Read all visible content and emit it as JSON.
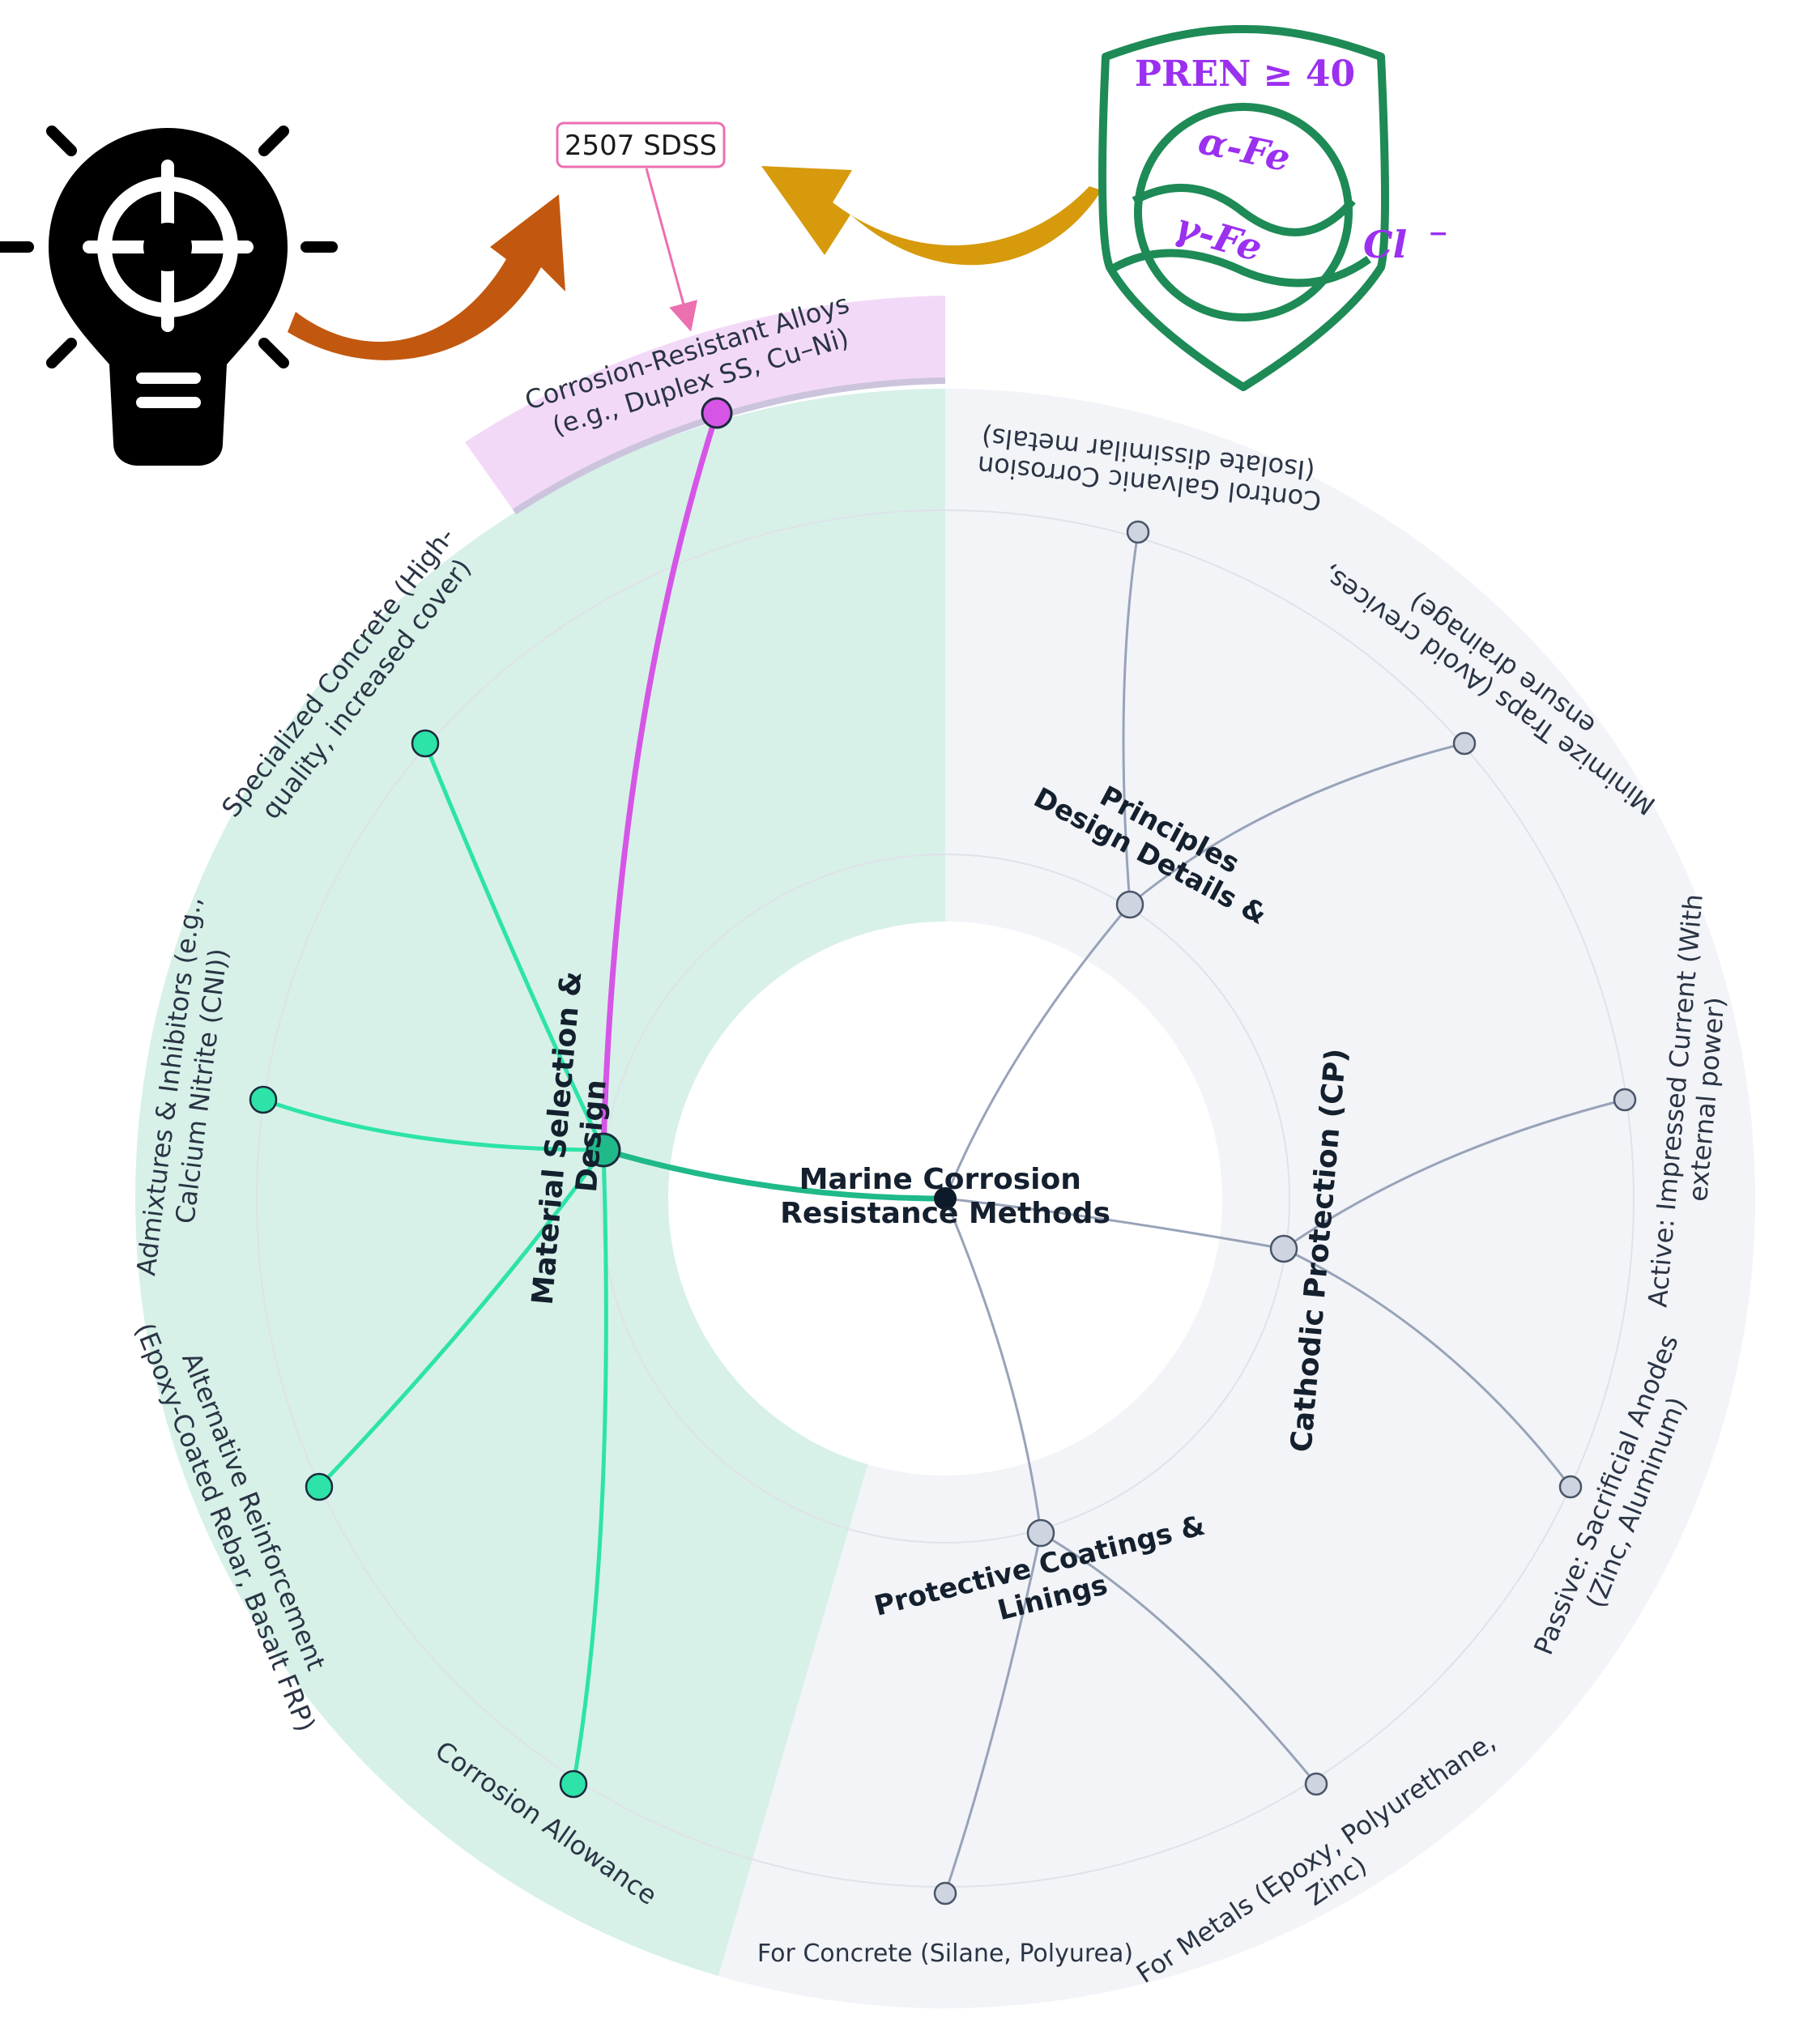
{
  "center": {
    "label_line1": "Marine Corrosion",
    "label_line2": "Resistance Methods"
  },
  "categories": [
    {
      "id": "material",
      "line1": "Material Selection &",
      "line2": "Design",
      "color": "#22c99a",
      "highlighted": true,
      "leaves": [
        {
          "line1": "Corrosion-Resistant Alloys",
          "line2": "(e.g., Duplex SS, Cu–Ni)",
          "highlight": true
        },
        {
          "line1": "Specialized Concrete (High-",
          "line2": "quality, increased cover)"
        },
        {
          "line1": "Admixtures & Inhibitors (e.g.,",
          "line2": "Calcium Nitrite (CNI))"
        },
        {
          "line1": "Alternative Reinforcement",
          "line2": "(Epoxy-Coated Rebar, Basalt FRP)"
        },
        {
          "line1": "Corrosion Allowance",
          "line2": ""
        }
      ]
    },
    {
      "id": "design",
      "line1": "Design Details &",
      "line2": "Principles",
      "color": "#8f9ab0",
      "leaves": [
        {
          "line1": "Control Galvanic Corrosion",
          "line2": "(Isolate dissimilar metals)"
        },
        {
          "line1": "Minimize Traps (Avoid crevices,",
          "line2": "ensure drainage)"
        }
      ]
    },
    {
      "id": "cp",
      "line1": "Cathodic Protection (CP)",
      "line2": "",
      "color": "#8f9ab0",
      "leaves": [
        {
          "line1": "Active: Impressed Current  (With",
          "line2": "external power)"
        },
        {
          "line1": "Passive: Sacrificial Anodes",
          "line2": "(Zinc, Aluminum)"
        }
      ]
    },
    {
      "id": "coatings",
      "line1": "Protective Coatings &",
      "line2": "Linings",
      "color": "#8f9ab0",
      "leaves": [
        {
          "line1": "For Metals (Epoxy, Polyurethane,",
          "line2": "Zinc)"
        },
        {
          "line1": "For Concrete (Silane, Polyurea)",
          "line2": ""
        }
      ]
    }
  ],
  "callout": {
    "label": "2507 SDSS",
    "color": "#ec6fb0"
  },
  "shield": {
    "title": "PREN ≥ 40",
    "phase1": "α-Fe",
    "phase2": "γ-Fe",
    "ion": "Cl",
    "ion_charge": "−",
    "color": "#1e8a56",
    "text_color": "#9b30f0"
  },
  "icons": {
    "bulb": "lightbulb-target-icon",
    "arrow_left": "curved-arrow-orange-icon",
    "arrow_right": "curved-arrow-gold-icon"
  },
  "colors": {
    "material_sector": "#d7f1e9",
    "other_sector": "#f2f4f8",
    "highlight_band": "#f3d9f8",
    "highlight_line": "#d655e6",
    "center_node": "#0d1a2a",
    "arrow_orange": "#c2580f",
    "arrow_gold": "#d69a0c"
  }
}
